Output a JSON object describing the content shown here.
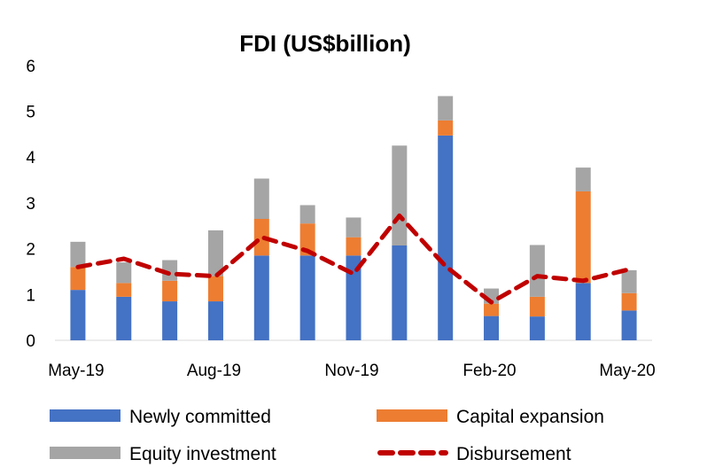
{
  "chart_data": {
    "type": "bar",
    "stacked": true,
    "title": "FDI (US$billion)",
    "xlabel": "",
    "ylabel": "",
    "ylim": [
      0,
      6
    ],
    "yticks": [
      "0",
      "1",
      "2",
      "3",
      "4",
      "5",
      "6"
    ],
    "grid": false,
    "legend_position": "bottom",
    "categories": [
      "May-19",
      "Jun-19",
      "Jul-19",
      "Aug-19",
      "Sep-19",
      "Oct-19",
      "Nov-19",
      "Dec-19",
      "Jan-20",
      "Feb-20",
      "Mar-20",
      "Apr-20",
      "May-20"
    ],
    "x_tick_labels": [
      "May-19",
      "Aug-19",
      "Nov-19",
      "Feb-20",
      "May-20"
    ],
    "series": [
      {
        "name": "Newly committed",
        "kind": "bar",
        "color": "#4472C4",
        "values": [
          1.1,
          0.95,
          0.85,
          0.85,
          1.85,
          1.85,
          1.85,
          2.07,
          4.47,
          0.53,
          0.52,
          1.25,
          0.65
        ]
      },
      {
        "name": "Capital expansion",
        "kind": "bar",
        "color": "#ED7D31",
        "values": [
          0.5,
          0.3,
          0.45,
          0.55,
          0.8,
          0.7,
          0.4,
          0.0,
          0.33,
          0.27,
          0.43,
          2.0,
          0.38
        ]
      },
      {
        "name": "Equity investment",
        "kind": "bar",
        "color": "#A5A5A5",
        "values": [
          0.55,
          0.45,
          0.45,
          1.0,
          0.88,
          0.4,
          0.43,
          2.18,
          0.53,
          0.33,
          1.13,
          0.52,
          0.5
        ]
      },
      {
        "name": "Disbursement",
        "kind": "line",
        "style": "dashed",
        "color": "#C00000",
        "values": [
          1.6,
          1.78,
          1.45,
          1.4,
          2.25,
          1.95,
          1.45,
          2.72,
          1.62,
          0.83,
          1.4,
          1.3,
          1.55
        ]
      }
    ]
  }
}
